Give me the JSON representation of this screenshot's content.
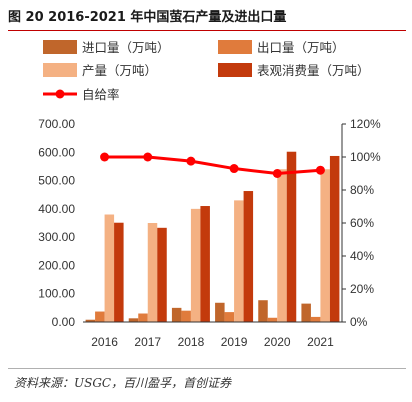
{
  "figure": {
    "title": "图 20 2016-2021 年中国萤石产量及进出口量",
    "source": "资料来源：USGC，百川盈孚，首创证券"
  },
  "colors": {
    "import": "#c0662b",
    "export": "#e07b3c",
    "production": "#f4b183",
    "consumption": "#c33a0c",
    "ratio": "#ff0000"
  },
  "chart_data": {
    "type": "bar",
    "categories": [
      "2016",
      "2017",
      "2018",
      "2019",
      "2020",
      "2021"
    ],
    "series": [
      {
        "name": "进口量（万吨）",
        "key": "import",
        "axis": "left",
        "values": [
          8,
          13,
          50,
          68,
          77,
          65
        ]
      },
      {
        "name": "出口量（万吨）",
        "key": "export",
        "axis": "left",
        "values": [
          37,
          30,
          40,
          35,
          15,
          18
        ]
      },
      {
        "name": "产量（万吨）",
        "key": "production",
        "axis": "left",
        "values": [
          380,
          350,
          400,
          430,
          540,
          540
        ]
      },
      {
        "name": "表观消费量（万吨）",
        "key": "consumption",
        "axis": "left",
        "values": [
          351,
          333,
          410,
          463,
          602,
          587
        ]
      },
      {
        "name": "自给率",
        "key": "ratio",
        "axis": "right",
        "type": "line",
        "values": [
          100,
          100,
          97.5,
          93,
          90,
          92
        ]
      }
    ],
    "left_axis": {
      "ylim": [
        0,
        700
      ],
      "ticks": [
        "0.00",
        "100.00",
        "200.00",
        "300.00",
        "400.00",
        "500.00",
        "600.00",
        "700.00"
      ]
    },
    "right_axis": {
      "ylim": [
        0,
        120
      ],
      "ticks": [
        "0%",
        "20%",
        "40%",
        "60%",
        "80%",
        "100%",
        "120%"
      ]
    },
    "legend_position": "top",
    "grid": false
  }
}
